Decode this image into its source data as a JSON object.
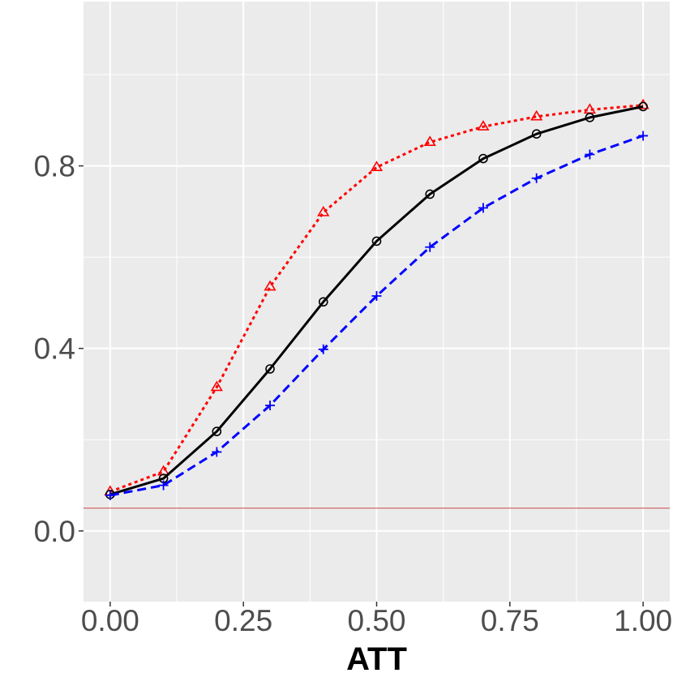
{
  "chart_data": {
    "type": "line",
    "xlabel": "ATT",
    "ylabel": "",
    "xlim": [
      -0.05,
      1.05
    ],
    "ylim": [
      -0.155,
      1.16
    ],
    "x_ticks": [
      0.0,
      0.25,
      0.5,
      0.75,
      1.0
    ],
    "x_tick_labels": [
      "0.00",
      "0.25",
      "0.50",
      "0.75",
      "1.00"
    ],
    "y_ticks": [
      0.0,
      0.4,
      0.8
    ],
    "y_tick_labels": [
      "0.0",
      "0.4",
      "0.8"
    ],
    "grid": true,
    "background": "#ebebeb",
    "reference_line": {
      "y": 0.05,
      "color": "#d46a6a"
    },
    "x": [
      0.0,
      0.1,
      0.2,
      0.3,
      0.4,
      0.5,
      0.6,
      0.7,
      0.8,
      0.9,
      1.0
    ],
    "series": [
      {
        "color": "#ff0000",
        "line": "dotted",
        "marker": "triangle",
        "values": [
          0.086,
          0.13,
          0.315,
          0.535,
          0.698,
          0.797,
          0.852,
          0.886,
          0.908,
          0.923,
          0.933
        ]
      },
      {
        "color": "#000000",
        "line": "solid",
        "marker": "circle",
        "values": [
          0.08,
          0.115,
          0.218,
          0.355,
          0.502,
          0.635,
          0.738,
          0.816,
          0.87,
          0.906,
          0.93
        ]
      },
      {
        "color": "#0000ff",
        "line": "dashed",
        "marker": "plus",
        "values": [
          0.078,
          0.1,
          0.173,
          0.275,
          0.398,
          0.515,
          0.622,
          0.708,
          0.773,
          0.825,
          0.866
        ]
      }
    ]
  }
}
